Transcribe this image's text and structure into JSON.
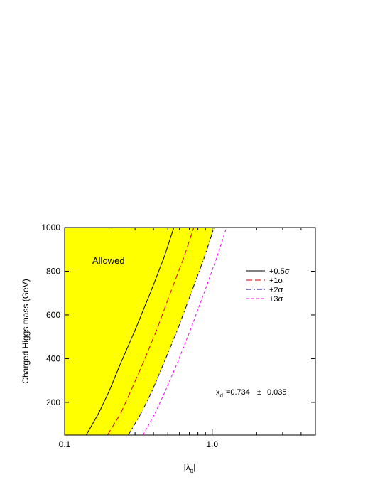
{
  "chart_data": {
    "type": "line",
    "xlabel_main": "|λ",
    "xlabel_sub": "tt",
    "xlabel_end": "|",
    "ylabel": "Charged Higgs mass  (GeV)",
    "x_scale": "log",
    "xlim": [
      0.1,
      5.0
    ],
    "ylim": [
      50,
      1000
    ],
    "x_ticks": [
      {
        "value": 0.1,
        "label": "0.1"
      },
      {
        "value": 1.0,
        "label": "1.0"
      }
    ],
    "y_ticks": [
      {
        "value": 200,
        "label": "200"
      },
      {
        "value": 400,
        "label": "400"
      },
      {
        "value": 600,
        "label": "600"
      },
      {
        "value": 800,
        "label": "800"
      },
      {
        "value": 1000,
        "label": "1000"
      }
    ],
    "region": {
      "label": "Allowed",
      "color": "#ffff00",
      "boundary": "+2σ"
    },
    "series": [
      {
        "name": "+0.5σ",
        "color": "#000000",
        "dash": "solid",
        "points": [
          [
            0.14,
            50
          ],
          [
            0.17,
            150
          ],
          [
            0.2,
            250
          ],
          [
            0.24,
            380
          ],
          [
            0.3,
            530
          ],
          [
            0.38,
            700
          ],
          [
            0.47,
            860
          ],
          [
            0.55,
            1000
          ]
        ]
      },
      {
        "name": "+1σ",
        "color": "#cc0000",
        "dash": "long-dash",
        "points": [
          [
            0.195,
            50
          ],
          [
            0.24,
            150
          ],
          [
            0.28,
            250
          ],
          [
            0.34,
            380
          ],
          [
            0.42,
            530
          ],
          [
            0.52,
            700
          ],
          [
            0.64,
            860
          ],
          [
            0.75,
            1000
          ]
        ]
      },
      {
        "name": "+2σ",
        "color": "#000080",
        "dash": "dash-dot",
        "points": [
          [
            0.27,
            50
          ],
          [
            0.33,
            150
          ],
          [
            0.39,
            250
          ],
          [
            0.47,
            380
          ],
          [
            0.58,
            530
          ],
          [
            0.72,
            700
          ],
          [
            0.88,
            860
          ],
          [
            1.03,
            1000
          ]
        ]
      },
      {
        "name": "+3σ",
        "color": "#ff00ff",
        "dash": "short-dash",
        "points": [
          [
            0.34,
            50
          ],
          [
            0.41,
            150
          ],
          [
            0.48,
            250
          ],
          [
            0.58,
            380
          ],
          [
            0.71,
            530
          ],
          [
            0.88,
            700
          ],
          [
            1.07,
            860
          ],
          [
            1.25,
            1000
          ]
        ]
      }
    ],
    "annotation": {
      "x_label": "x",
      "x_sub": "d",
      "value": "=0.734",
      "pm": "±",
      "error": "0.035"
    },
    "legend_placement": "top-right"
  }
}
